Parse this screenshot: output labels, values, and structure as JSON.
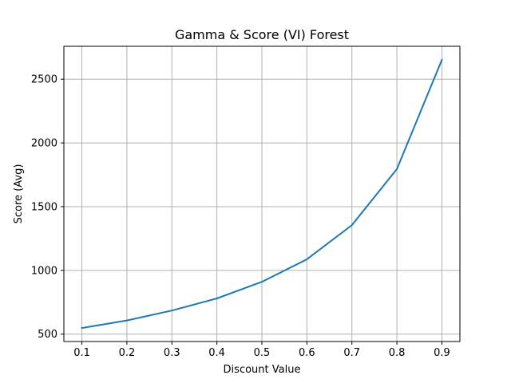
{
  "chart_data": {
    "type": "line",
    "title": "Gamma & Score (VI) Forest",
    "xlabel": "Discount Value",
    "ylabel": "Score (Avg)",
    "x": [
      0.1,
      0.2,
      0.3,
      0.4,
      0.5,
      0.6,
      0.7,
      0.8,
      0.9
    ],
    "series": [
      {
        "values": [
          548,
          607,
          685,
          780,
          910,
          1087,
          1355,
          1795,
          2652
        ],
        "color": "#1f77b4"
      }
    ],
    "xticks": [
      "0.1",
      "0.2",
      "0.3",
      "0.4",
      "0.5",
      "0.6",
      "0.7",
      "0.8",
      "0.9"
    ],
    "yticks": [
      "500",
      "1000",
      "1500",
      "2000",
      "2500"
    ],
    "xlim": [
      0.06,
      0.94
    ],
    "ylim": [
      442,
      2758
    ],
    "grid": true,
    "legend": "none"
  }
}
